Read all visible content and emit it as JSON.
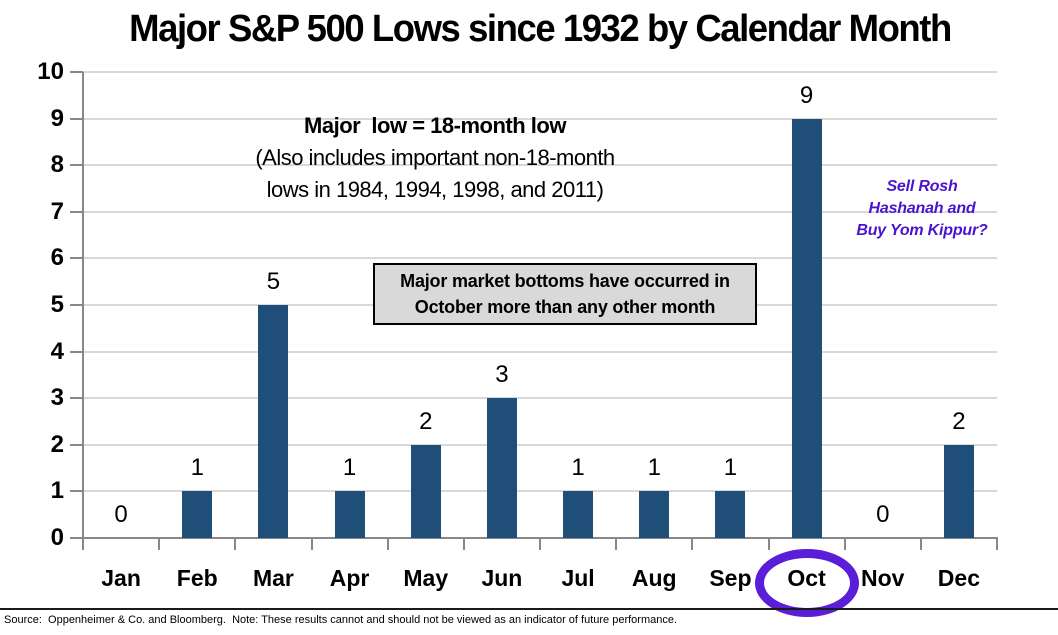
{
  "title": "Major S&P 500 Lows since 1932 by Calendar Month",
  "chart_data": {
    "type": "bar",
    "title": "Major S&P 500 Lows since 1932 by Calendar Month",
    "categories": [
      "Jan",
      "Feb",
      "Mar",
      "Apr",
      "May",
      "Jun",
      "Jul",
      "Aug",
      "Sep",
      "Oct",
      "Nov",
      "Dec"
    ],
    "values": [
      0,
      1,
      5,
      1,
      2,
      3,
      1,
      1,
      1,
      9,
      0,
      2
    ],
    "xlabel": "",
    "ylabel": "",
    "ylim": [
      0,
      10
    ],
    "ytick_step": 1,
    "grid": true,
    "legend": "none",
    "bar_color": "#1F4E79",
    "gridline_color": "#d9d9d9",
    "axis_color": "#888888",
    "highlighted_category": "Oct",
    "highlight_color": "#5a1ed8"
  },
  "annotations": {
    "definition": {
      "line1": "Major  low = 18-month low",
      "line2": "(Also includes important non-18-month",
      "line3": "lows in 1984, 1994, 1998, and 2011)"
    },
    "callout": {
      "line1": "Major market bottoms have occurred in",
      "line2": "October more than any other month"
    },
    "purple_note": {
      "line1": "Sell Rosh",
      "line2": "Hashanah and",
      "line3": "Buy Yom Kippur?",
      "color": "#4a14cf"
    }
  },
  "footer": {
    "source": "Source:  Oppenheimer & Co. and Bloomberg.  Note: These results cannot and should not be viewed as an indicator of future performance."
  }
}
